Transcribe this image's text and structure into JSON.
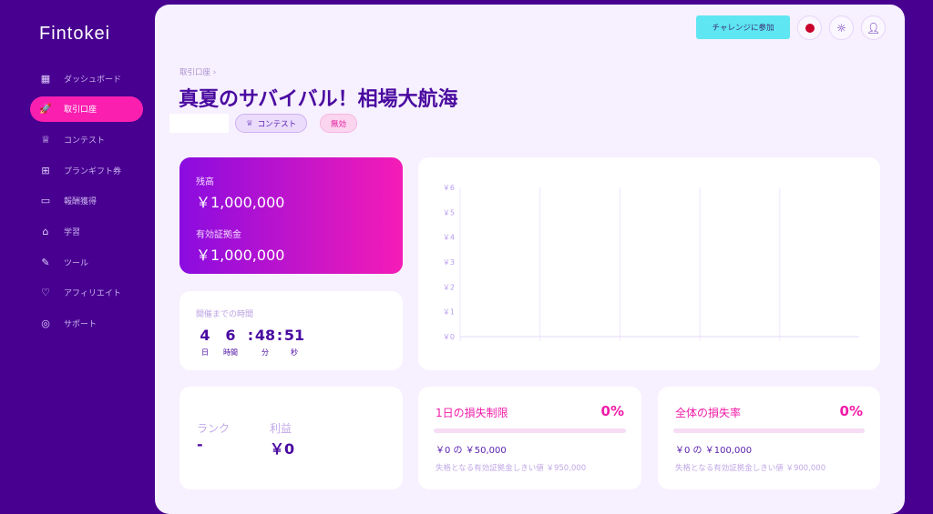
{
  "brand": "Fintokei",
  "sidebar": {
    "items": [
      {
        "label": "ダッシュボード",
        "icon": "grid-icon",
        "glyph": "▦"
      },
      {
        "label": "取引口座",
        "icon": "rocket-icon",
        "glyph": "🚀",
        "active": true
      },
      {
        "label": "コンテスト",
        "icon": "trophy-icon",
        "glyph": "♕"
      },
      {
        "label": "プランギフト券",
        "icon": "gift-icon",
        "glyph": "⊞"
      },
      {
        "label": "報酬獲得",
        "icon": "wallet-icon",
        "glyph": "▭"
      },
      {
        "label": "学習",
        "icon": "graduation-cap-icon",
        "glyph": "⌂"
      },
      {
        "label": "ツール",
        "icon": "tools-icon",
        "glyph": "✎"
      },
      {
        "label": "アフィリエイト",
        "icon": "heart-handshake-icon",
        "glyph": "♡"
      },
      {
        "label": "サポート",
        "icon": "lifebuoy-icon",
        "glyph": "◎"
      }
    ]
  },
  "header": {
    "join_label": "チャレンジに参加",
    "flag": "japan-flag-icon",
    "theme": "sun-icon",
    "user": "user-icon"
  },
  "breadcrumb": "取引口座 ›",
  "title": "真夏のサバイバル！相場大航海",
  "tags": {
    "contest": "コンテスト",
    "status": "無効"
  },
  "balance": {
    "balance_label": "残高",
    "balance": "￥1,000,000",
    "equity_label": "有効証拠金",
    "equity": "￥1,000,000"
  },
  "countdown": {
    "label": "開催までの時間",
    "days": "4",
    "hours": "6",
    "minutes": "48",
    "seconds": "51",
    "units": [
      "日",
      "時間",
      "分",
      "秒"
    ]
  },
  "rank": {
    "rank_label": "ランク",
    "rank": "-",
    "profit_label": "利益",
    "profit": "￥0"
  },
  "daily_loss": {
    "title": "1日の損失制限",
    "percent": "0%",
    "progress": 0,
    "amount": "￥0 の ￥50,000",
    "threshold": "失格となる有効証拠金しきい値 ￥950,000"
  },
  "total_loss": {
    "title": "全体の損失率",
    "percent": "0%",
    "progress": 0,
    "amount": "￥0 の ￥100,000",
    "threshold": "失格となる有効証拠金しきい値 ￥900,000"
  },
  "chart_data": {
    "type": "line",
    "y_ticks": [
      "￥0",
      "￥1",
      "￥2",
      "￥3",
      "￥4",
      "￥5",
      "￥6"
    ],
    "ylim": [
      0,
      6
    ],
    "series": [],
    "grid": "vertical"
  }
}
